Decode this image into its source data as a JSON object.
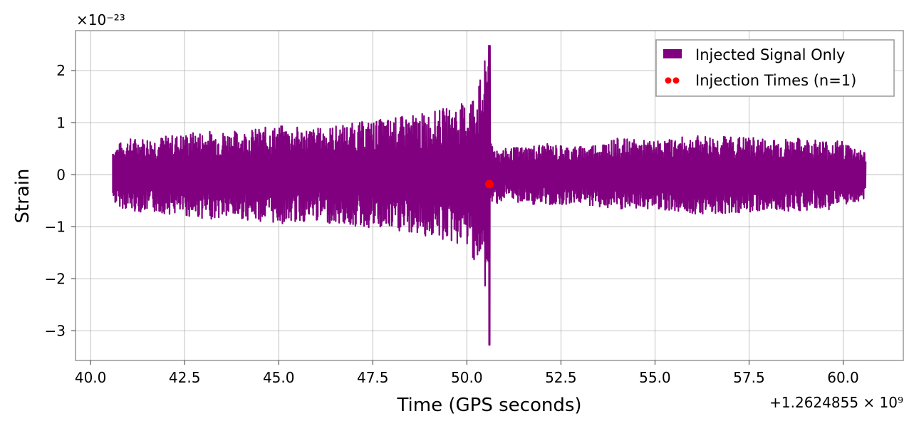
{
  "chart_data": {
    "type": "line",
    "xlabel": "Time (GPS seconds)",
    "ylabel": "Strain",
    "x_offset_label": "+1.2624855 × 10⁹",
    "y_scale_label": "×10⁻²³",
    "xlim": [
      39.6,
      61.6
    ],
    "ylim": [
      -3.57,
      2.77
    ],
    "x_ticks": [
      40.0,
      42.5,
      45.0,
      47.5,
      50.0,
      52.5,
      55.0,
      57.5,
      60.0
    ],
    "x_tick_labels": [
      "40.0",
      "42.5",
      "45.0",
      "47.5",
      "50.0",
      "52.5",
      "55.0",
      "57.5",
      "60.0"
    ],
    "y_ticks": [
      -3,
      -2,
      -1,
      0,
      1,
      2
    ],
    "y_tick_labels": [
      "−3",
      "−2",
      "−1",
      "0",
      "1",
      "2"
    ],
    "grid": true,
    "legend_position": "top-right",
    "series": [
      {
        "name": "Injected Signal Only",
        "color": "#800080",
        "x_range": [
          40.6,
          60.6
        ],
        "merger_time": 50.6,
        "envelope_points": [
          [
            40.6,
            0.55
          ],
          [
            41.0,
            0.7
          ],
          [
            42.0,
            0.75
          ],
          [
            43.0,
            0.85
          ],
          [
            44.0,
            0.85
          ],
          [
            45.0,
            0.95
          ],
          [
            46.0,
            0.9
          ],
          [
            47.0,
            1.0
          ],
          [
            48.0,
            1.1
          ],
          [
            49.0,
            1.2
          ],
          [
            50.0,
            1.4
          ],
          [
            50.4,
            1.9
          ],
          [
            50.55,
            2.48
          ],
          [
            50.58,
            -3.27
          ],
          [
            50.62,
            0.6
          ],
          [
            51.0,
            0.5
          ],
          [
            52.0,
            0.6
          ],
          [
            53.0,
            0.55
          ],
          [
            54.0,
            0.7
          ],
          [
            55.0,
            0.65
          ],
          [
            56.0,
            0.75
          ],
          [
            57.0,
            0.75
          ],
          [
            58.0,
            0.7
          ],
          [
            59.0,
            0.7
          ],
          [
            60.0,
            0.65
          ],
          [
            60.6,
            0.45
          ]
        ]
      },
      {
        "name": "Injection Times (n=1)",
        "color": "#ff0000",
        "type": "scatter",
        "points": [
          [
            50.6,
            -0.18
          ]
        ]
      }
    ]
  }
}
